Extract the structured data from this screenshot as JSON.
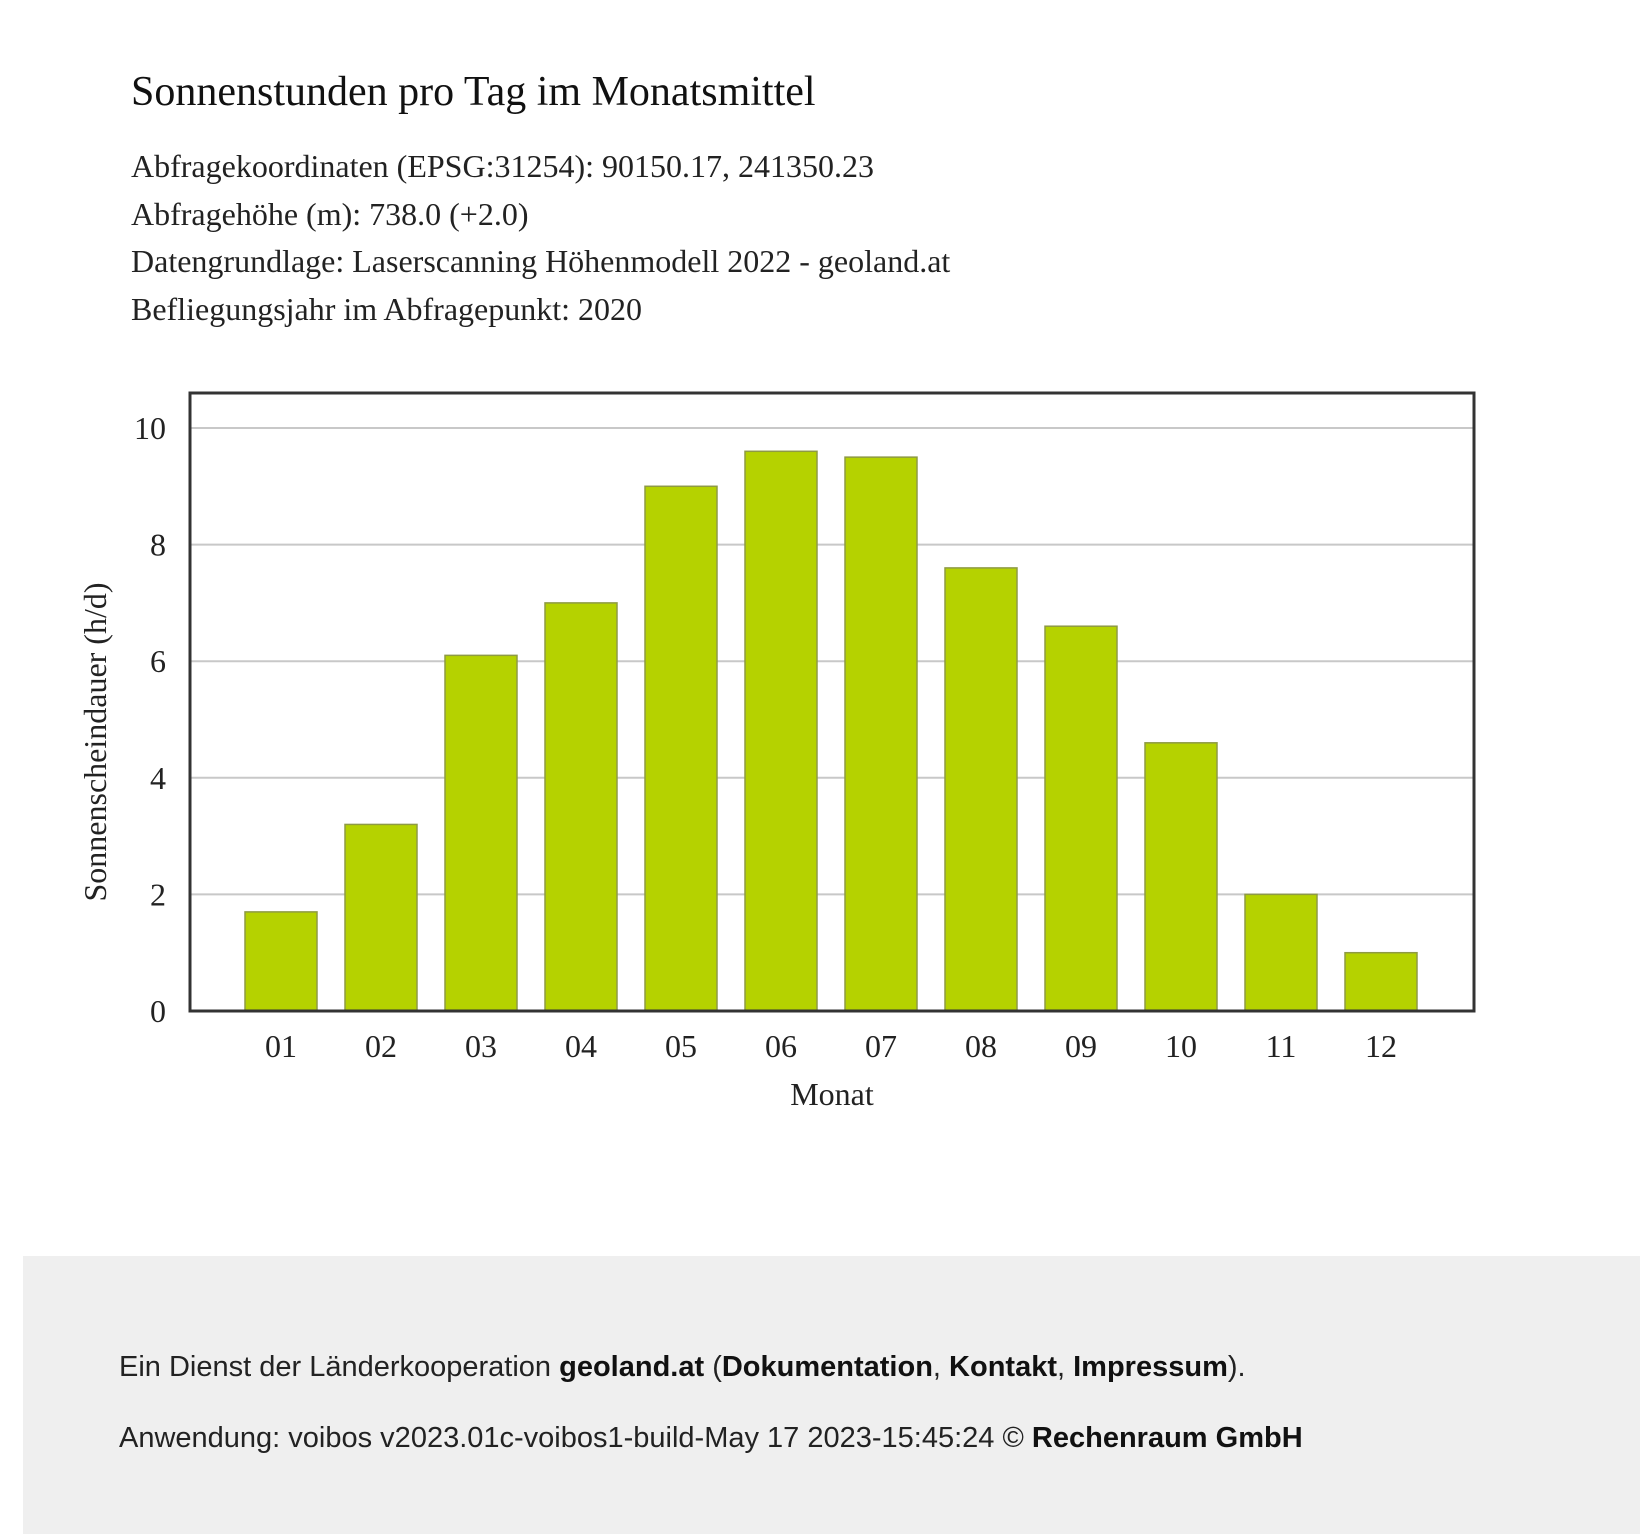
{
  "header": {
    "title": "Sonnenstunden pro Tag im Monatsmittel",
    "lines": [
      "Abfragekoordinaten (EPSG:31254): 90150.17, 241350.23",
      "Abfragehöhe (m): 738.0 (+2.0)",
      "Datengrundlage: Laserscanning Höhenmodell 2022 - geoland.at",
      "Befliegungsjahr im Abfragepunkt: 2020"
    ]
  },
  "chart_data": {
    "type": "bar",
    "categories": [
      "01",
      "02",
      "03",
      "04",
      "05",
      "06",
      "07",
      "08",
      "09",
      "10",
      "11",
      "12"
    ],
    "values": [
      1.7,
      3.2,
      6.1,
      7.0,
      9.0,
      9.6,
      9.5,
      7.6,
      6.6,
      4.6,
      2.0,
      1.0
    ],
    "xlabel": "Monat",
    "ylabel": "Sonnenscheindauer (h/d)",
    "ylim": [
      0,
      10.6
    ],
    "yticks": [
      0,
      2,
      4,
      6,
      8,
      10
    ],
    "grid": true,
    "bar_color": "#b5d200"
  },
  "footer": {
    "line1_prefix": "Ein Dienst der Länderkooperation",
    "line1_brand": "geoland.at",
    "open_paren": " (",
    "links": [
      "Dokumentation",
      "Kontakt",
      "Impressum"
    ],
    "sep": ", ",
    "close": ").",
    "line2_prefix": "Anwendung: voibos v2023.01c-voibos1-build-May 17 2023-15:45:24 ©",
    "line2_company": "Rechenraum GmbH"
  }
}
